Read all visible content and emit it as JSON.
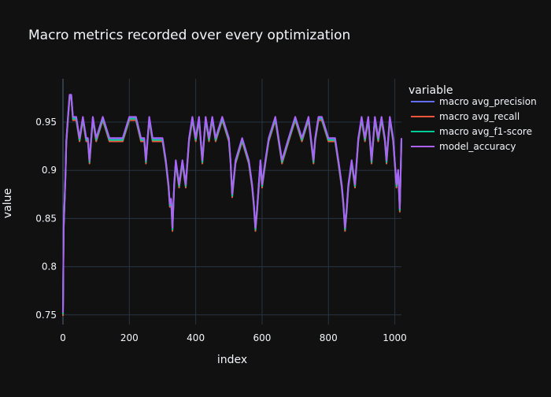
{
  "chart_data": {
    "type": "line",
    "title": "Macro metrics recorded over every optimization",
    "xlabel": "index",
    "ylabel": "value",
    "xlim": [
      0,
      1020
    ],
    "ylim": [
      0.74,
      0.995
    ],
    "x_ticks": [
      0,
      200,
      400,
      600,
      800,
      1000
    ],
    "y_ticks": [
      0.75,
      0.8,
      0.85,
      0.9,
      0.95
    ],
    "y_tick_labels": [
      "0.75",
      "0.8",
      "0.85",
      "0.9",
      "0.95"
    ],
    "grid": true,
    "legend_title": "variable",
    "legend_position": "right",
    "base_series": {
      "x": [
        0,
        2,
        5,
        8,
        10,
        15,
        20,
        25,
        30,
        35,
        40,
        50,
        60,
        70,
        75,
        80,
        85,
        90,
        100,
        120,
        140,
        160,
        180,
        200,
        220,
        235,
        245,
        250,
        255,
        260,
        270,
        285,
        300,
        310,
        318,
        322,
        326,
        330,
        335,
        340,
        350,
        360,
        370,
        380,
        390,
        400,
        410,
        420,
        430,
        440,
        450,
        460,
        480,
        500,
        505,
        510,
        520,
        540,
        560,
        570,
        575,
        580,
        585,
        590,
        595,
        600,
        610,
        620,
        640,
        660,
        680,
        700,
        720,
        740,
        755,
        760,
        770,
        780,
        800,
        820,
        830,
        840,
        845,
        850,
        855,
        860,
        870,
        880,
        890,
        900,
        910,
        920,
        930,
        940,
        950,
        960,
        970,
        975,
        985,
        995,
        1005,
        1010,
        1015,
        1020
      ],
      "y": [
        0.752,
        0.84,
        0.87,
        0.9,
        0.93,
        0.955,
        0.978,
        0.978,
        0.955,
        0.955,
        0.955,
        0.933,
        0.955,
        0.933,
        0.933,
        0.91,
        0.933,
        0.955,
        0.933,
        0.955,
        0.933,
        0.933,
        0.933,
        0.955,
        0.955,
        0.933,
        0.933,
        0.91,
        0.933,
        0.955,
        0.933,
        0.933,
        0.933,
        0.91,
        0.885,
        0.865,
        0.87,
        0.84,
        0.885,
        0.91,
        0.885,
        0.91,
        0.885,
        0.933,
        0.955,
        0.933,
        0.955,
        0.91,
        0.955,
        0.933,
        0.955,
        0.933,
        0.955,
        0.933,
        0.91,
        0.875,
        0.91,
        0.933,
        0.91,
        0.885,
        0.866,
        0.84,
        0.86,
        0.885,
        0.91,
        0.885,
        0.91,
        0.933,
        0.955,
        0.91,
        0.933,
        0.955,
        0.933,
        0.955,
        0.91,
        0.933,
        0.955,
        0.955,
        0.933,
        0.933,
        0.91,
        0.885,
        0.866,
        0.84,
        0.86,
        0.885,
        0.91,
        0.885,
        0.933,
        0.955,
        0.933,
        0.955,
        0.91,
        0.955,
        0.933,
        0.955,
        0.933,
        0.91,
        0.955,
        0.933,
        0.885,
        0.9,
        0.86,
        0.933
      ]
    },
    "series": [
      {
        "name": "macro avg_precision",
        "color": "#636efa",
        "offset": 0.0
      },
      {
        "name": "macro avg_recall",
        "color": "#ef553b",
        "offset": -0.003
      },
      {
        "name": "macro avg_f1-score",
        "color": "#00cc96",
        "offset": -0.0015
      },
      {
        "name": "model_accuracy",
        "color": "#ab63fa",
        "offset": 0.0005
      }
    ]
  }
}
